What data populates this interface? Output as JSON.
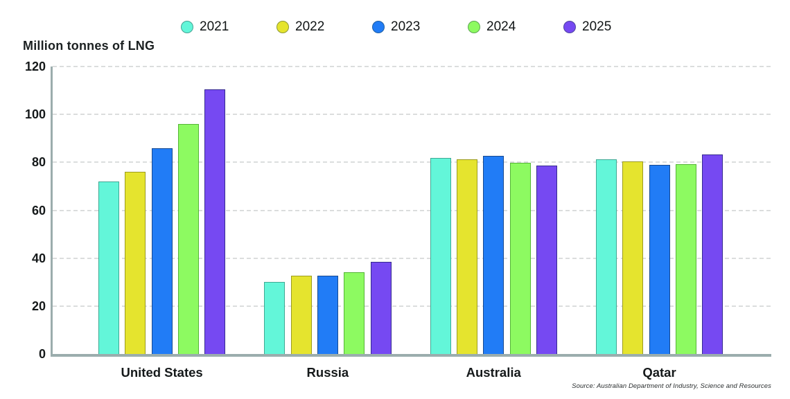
{
  "chart_data": {
    "type": "bar",
    "title": "Million tonnes of LNG",
    "categories": [
      "United States",
      "Russia",
      "Australia",
      "Qatar"
    ],
    "series": [
      {
        "name": "2021",
        "color": "#63F6D9",
        "border": "#3FA893",
        "values": [
          72,
          30,
          81.9,
          81.3
        ]
      },
      {
        "name": "2022",
        "color": "#E5E42E",
        "border": "#9B9B1E",
        "values": [
          76,
          32.8,
          81.3,
          80.5
        ]
      },
      {
        "name": "2023",
        "color": "#217CF6",
        "border": "#17498F",
        "values": [
          86,
          32.7,
          82.7,
          79
        ]
      },
      {
        "name": "2024",
        "color": "#8DFA61",
        "border": "#55B437",
        "values": [
          96,
          34,
          79.9,
          79.3
        ]
      },
      {
        "name": "2025",
        "color": "#7649F2",
        "border": "#352A8F",
        "values": [
          110.5,
          38.5,
          78.6,
          83.4
        ]
      }
    ],
    "xlabel": "",
    "ylabel": "Million tonnes of LNG",
    "ylim": [
      0,
      120
    ],
    "yticks": [
      0,
      20,
      40,
      60,
      80,
      100,
      120
    ],
    "grid": "horizontal-dashed",
    "legend_position": "top",
    "source": "Source: Australian Department of Industry, Science and Resources",
    "colors": {
      "axis": "#9badad",
      "gridline": "#dbdddd",
      "text": "#15191a"
    }
  }
}
